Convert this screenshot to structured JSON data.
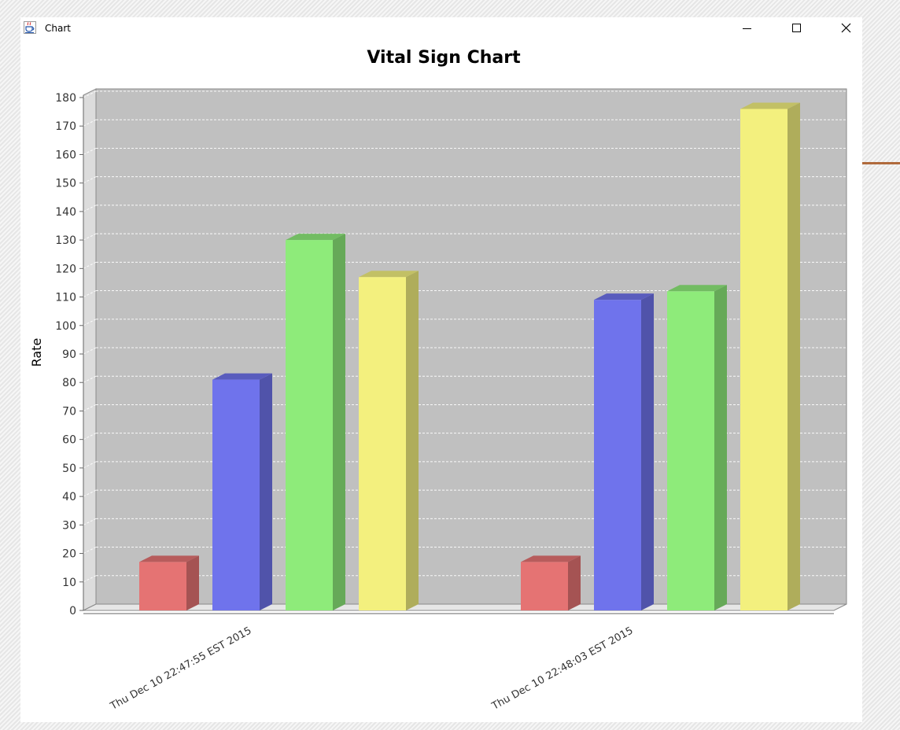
{
  "window": {
    "title": "Chart",
    "icon": "java-cup-icon",
    "buttons": [
      "minimize-icon",
      "maximize-icon",
      "close-icon"
    ]
  },
  "colors": {
    "plot_background": "#c0c0c0",
    "series": [
      "#e57373",
      "#6f73ec",
      "#8eeb7a",
      "#f3f07e"
    ]
  },
  "chart_data": {
    "type": "bar",
    "title": "Vital Sign Chart",
    "xlabel": "",
    "ylabel": "Rate",
    "ylim": [
      0,
      180
    ],
    "yticks": [
      0,
      10,
      20,
      30,
      40,
      50,
      60,
      70,
      80,
      90,
      100,
      110,
      120,
      130,
      140,
      150,
      160,
      170,
      180
    ],
    "categories": [
      "Thu Dec 10 22:47:55 EST 2015",
      "Thu Dec 10 22:48:03 EST 2015"
    ],
    "series": [
      {
        "values": [
          17,
          17
        ]
      },
      {
        "values": [
          81,
          109
        ]
      },
      {
        "values": [
          130,
          112
        ]
      },
      {
        "values": [
          117,
          176
        ]
      }
    ],
    "grid": true,
    "legend": "none",
    "style": "3d"
  }
}
